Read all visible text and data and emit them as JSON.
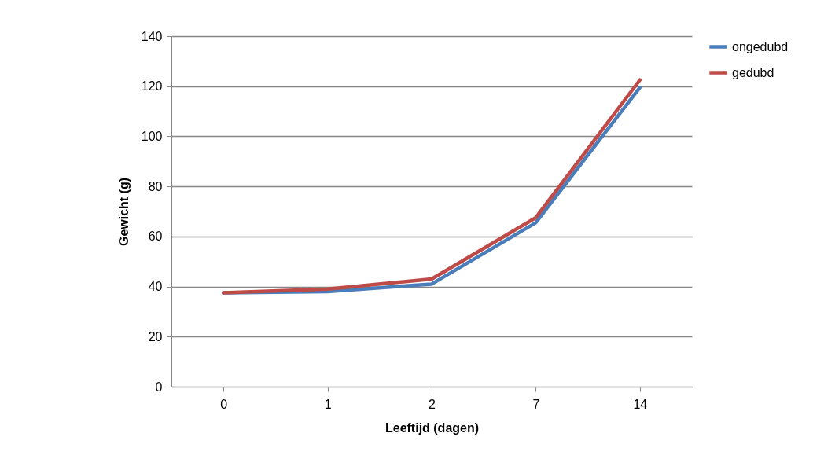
{
  "chart_data": {
    "type": "line",
    "xlabel": "Leeftijd (dagen)",
    "ylabel": "Gewicht (g)",
    "categories": [
      "0",
      "1",
      "2",
      "7",
      "14"
    ],
    "series": [
      {
        "name": "ongedubd",
        "color": "#4a7ebb",
        "values": [
          37.5,
          38,
          41,
          65.5,
          119.5
        ]
      },
      {
        "name": "gedubd",
        "color": "#be4b48",
        "values": [
          37.5,
          39,
          43,
          67.5,
          122.5
        ]
      }
    ],
    "ylim": [
      0,
      140
    ],
    "yticks": [
      0,
      20,
      40,
      60,
      80,
      100,
      120,
      140
    ],
    "grid": "y",
    "legend": "right",
    "marker": "none",
    "line_style": "solid"
  }
}
